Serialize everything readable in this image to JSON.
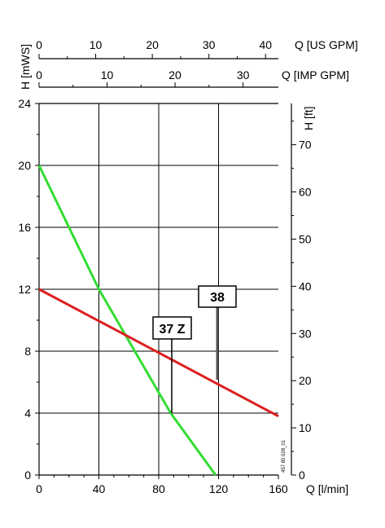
{
  "chart_data": {
    "type": "line",
    "x": {
      "label": "Q [l/min]",
      "range": [
        0,
        160
      ],
      "ticks": [
        0,
        40,
        80,
        120,
        160
      ]
    },
    "y_left": {
      "label": "H [mWS]",
      "range": [
        0,
        24
      ],
      "ticks": [
        0,
        4,
        8,
        12,
        16,
        20,
        24
      ]
    },
    "y_right": {
      "label": "H [ft]",
      "ticks": [
        0,
        10,
        20,
        30,
        40,
        50,
        60,
        70
      ]
    },
    "x_top_us": {
      "label": "Q [US GPM]",
      "ticks": [
        0,
        10,
        20,
        30,
        40
      ]
    },
    "x_top_imp": {
      "label": "Q [IMP GPM]",
      "ticks": [
        0,
        10,
        20,
        30
      ]
    },
    "grid": true,
    "series": [
      {
        "name": "37 Z",
        "color": "#33dd33",
        "points": [
          [
            0,
            20
          ],
          [
            40,
            12
          ],
          [
            88,
            4
          ],
          [
            118,
            0
          ]
        ]
      },
      {
        "name": "38",
        "color": "#dd1f1f",
        "points": [
          [
            0,
            12
          ],
          [
            160,
            3.8
          ]
        ]
      }
    ],
    "code": "457 80 028_01"
  }
}
